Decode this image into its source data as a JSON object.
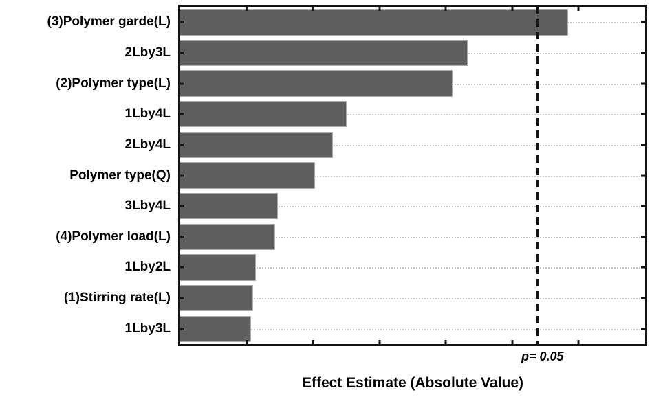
{
  "chart_data": {
    "type": "bar",
    "orientation": "horizontal",
    "title": "",
    "xlabel": "Effect Estimate (Absolute Value)",
    "ylabel": "",
    "categories": [
      "(3)Polymer garde(L)",
      "2Lby3L",
      "(2)Polymer type(L)",
      "1Lby4L",
      "2Lby4L",
      "Polymer type(Q)",
      "3Lby4L",
      "(4)Polymer load(L)",
      "1Lby2L",
      "(1)Stirring rate(L)",
      "1Lby3L"
    ],
    "values": [
      5.84,
      4.33,
      4.1,
      2.51,
      2.3,
      2.03,
      1.47,
      1.43,
      1.14,
      1.1,
      1.07
    ],
    "xlim": [
      0,
      7
    ],
    "x_tick_interval": 1,
    "x_tick_labels_visible": false,
    "grid": "horizontal-dotted",
    "legend": "none",
    "reference_line": {
      "label": "p= 0.05",
      "value": 5.38,
      "orientation": "vertical",
      "style": "dashed"
    },
    "colors": {
      "bar_fill": "#5e5e5e",
      "bar_border": "#a8a8a8",
      "frame": "#141414",
      "gridline": "#c8c8c8",
      "reference_line": "#141414",
      "background": "#ffffff",
      "text": "#000000"
    }
  }
}
